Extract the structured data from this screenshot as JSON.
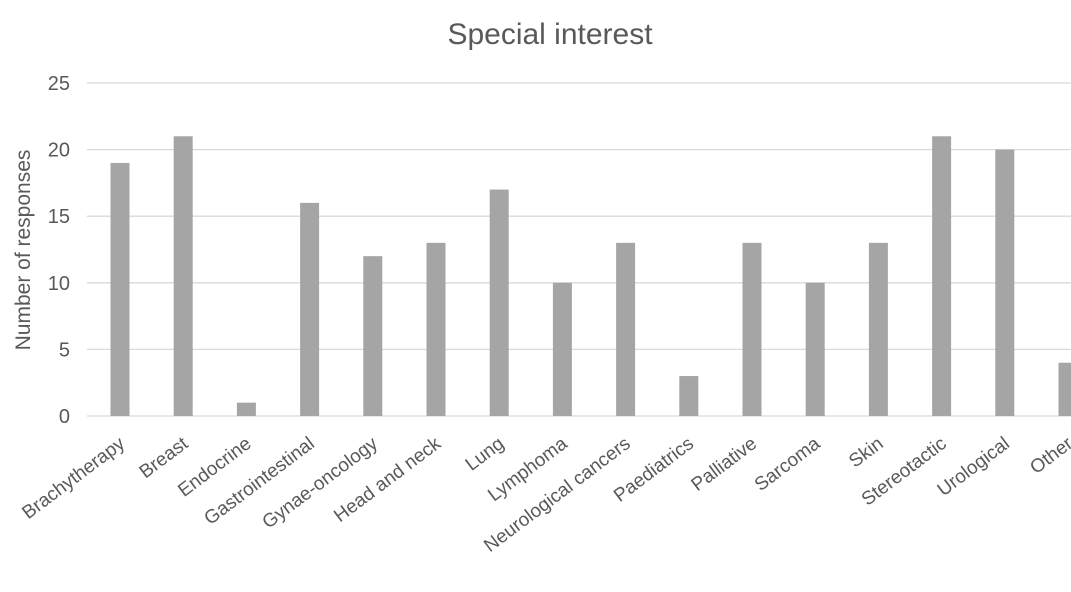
{
  "chart_data": {
    "type": "bar",
    "title": "Special interest",
    "xlabel": "",
    "ylabel": "Number of responses",
    "ylim": [
      0,
      25
    ],
    "yticks": [
      0,
      5,
      10,
      15,
      20,
      25
    ],
    "grid": true,
    "legend": "none",
    "bar_color": "#a5a5a5",
    "categories": [
      "Brachytherapy",
      "Breast",
      "Endocrine",
      "Gastrointestinal",
      "Gynae-oncology",
      "Head and neck",
      "Lung",
      "Lymphoma",
      "Neurological cancers",
      "Paediatrics",
      "Palliative",
      "Sarcoma",
      "Skin",
      "Stereotactic",
      "Urological",
      "Other"
    ],
    "values": [
      19,
      21,
      1,
      16,
      12,
      13,
      17,
      10,
      13,
      3,
      13,
      10,
      13,
      21,
      20,
      4
    ]
  }
}
